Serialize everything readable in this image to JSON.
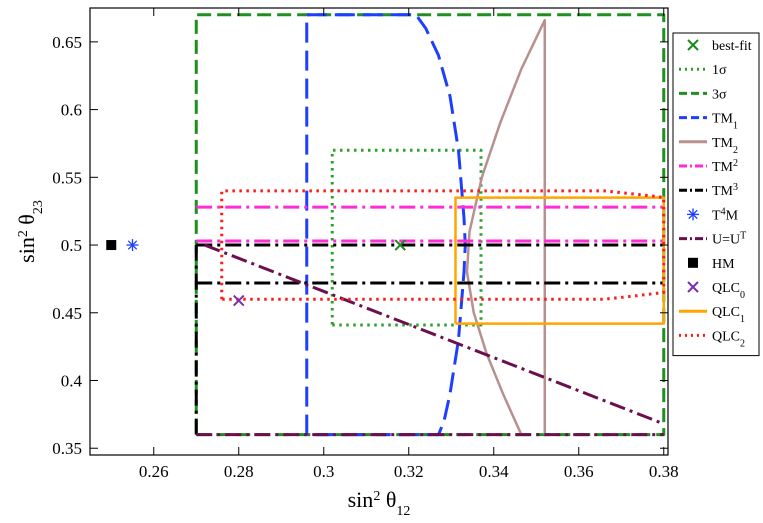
{
  "chart_data": {
    "type": "line",
    "xlabel": "sin² θ₁₂",
    "ylabel": "sin² θ₂₃",
    "xlabel_parts": {
      "base": "sin",
      "sup": "2",
      "theta": " θ",
      "sub": "12"
    },
    "ylabel_parts": {
      "base": "sin",
      "sup": "2",
      "theta": " θ",
      "sub": "23"
    },
    "xlim": [
      0.245,
      0.381
    ],
    "ylim": [
      0.345,
      0.675
    ],
    "xticks": [
      0.26,
      0.28,
      0.3,
      0.32,
      0.34,
      0.36,
      0.38
    ],
    "xtick_labels": [
      "0.26",
      "0.28",
      "0.3",
      "0.32",
      "0.34",
      "0.36",
      "0.38"
    ],
    "yticks": [
      0.35,
      0.4,
      0.45,
      0.5,
      0.55,
      0.6,
      0.65
    ],
    "ytick_labels": [
      "0.35",
      "0.4",
      "0.45",
      "0.5",
      "0.55",
      "0.6",
      "0.65"
    ],
    "grid": false,
    "legend_position": "right",
    "series": [
      {
        "name": "best-fit",
        "key": "bestfit",
        "kind": "marker",
        "marker": "x",
        "color": "#1a8a1a",
        "points": [
          [
            0.318,
            0.5
          ]
        ]
      },
      {
        "name": "1σ",
        "key": "sigma1",
        "kind": "line",
        "dash": "dot",
        "color": "#2ca02c",
        "lines": [
          [
            [
              0.302,
              0.441
            ],
            [
              0.337,
              0.441
            ],
            [
              0.337,
              0.57
            ],
            [
              0.302,
              0.57
            ],
            [
              0.302,
              0.441
            ]
          ]
        ]
      },
      {
        "name": "3σ",
        "key": "sigma3",
        "kind": "line",
        "dash": "dash",
        "color": "#1f8f1f",
        "lines": [
          [
            [
              0.27,
              0.36
            ],
            [
              0.38,
              0.36
            ],
            [
              0.38,
              0.67
            ],
            [
              0.27,
              0.67
            ],
            [
              0.27,
              0.36
            ]
          ]
        ]
      },
      {
        "name": "TM",
        "sub": "1",
        "key": "tm1",
        "kind": "line",
        "dash": "longdash",
        "color": "#1f3fff",
        "lines": [
          [
            [
              0.296,
              0.36
            ],
            [
              0.296,
              0.67
            ],
            [
              0.3217,
              0.67
            ],
            [
              0.324,
              0.66
            ],
            [
              0.327,
              0.64
            ],
            [
              0.3297,
              0.61
            ],
            [
              0.3317,
              0.57
            ],
            [
              0.333,
              0.52
            ],
            [
              0.3333,
              0.5
            ],
            [
              0.333,
              0.48
            ],
            [
              0.3317,
              0.43
            ],
            [
              0.3297,
              0.39
            ],
            [
              0.3283,
              0.37
            ],
            [
              0.327,
              0.36
            ],
            [
              0.296,
              0.36
            ]
          ]
        ]
      },
      {
        "name": "TM",
        "sub": "2",
        "key": "tm2",
        "kind": "line",
        "dash": "solid",
        "color": "#b89090",
        "lines": [
          [
            [
              0.352,
              0.36
            ],
            [
              0.352,
              0.666
            ],
            [
              0.3465,
              0.63
            ],
            [
              0.3415,
              0.59
            ],
            [
              0.3372,
              0.55
            ],
            [
              0.3343,
              0.51
            ],
            [
              0.3337,
              0.48
            ],
            [
              0.3353,
              0.45
            ],
            [
              0.3383,
              0.42
            ],
            [
              0.3422,
              0.39
            ],
            [
              0.3465,
              0.36
            ]
          ]
        ]
      },
      {
        "name": "TM",
        "sup": "2",
        "key": "tm2b",
        "kind": "line",
        "dash": "dashdot",
        "color": "#ff2bd6",
        "lines": [
          [
            [
              0.27,
              0.528
            ],
            [
              0.38,
              0.528
            ]
          ],
          [
            [
              0.27,
              0.503
            ],
            [
              0.38,
              0.503
            ]
          ]
        ]
      },
      {
        "name": "TM",
        "sup": "3",
        "key": "tm3",
        "kind": "line",
        "dash": "dashdot",
        "color": "#000000",
        "lines": [
          [
            [
              0.27,
              0.5
            ],
            [
              0.38,
              0.5
            ]
          ],
          [
            [
              0.27,
              0.472
            ],
            [
              0.38,
              0.472
            ]
          ],
          [
            [
              0.27,
              0.36
            ],
            [
              0.27,
              0.5
            ]
          ]
        ]
      },
      {
        "name": "T",
        "sup": "4",
        "after": "M",
        "key": "t4m",
        "kind": "marker",
        "marker": "asterisk",
        "color": "#1f3fff",
        "points": [
          [
            0.255,
            0.5
          ]
        ]
      },
      {
        "name": "U=U",
        "sup": "T",
        "key": "uut",
        "kind": "line",
        "dash": "dashdot",
        "color": "#6b0f4f",
        "lines": [
          [
            [
              0.272,
              0.5
            ],
            [
              0.38,
              0.368
            ]
          ],
          [
            [
              0.27,
              0.36
            ],
            [
              0.38,
              0.36
            ]
          ]
        ]
      },
      {
        "name": "HM",
        "key": "hm",
        "kind": "marker",
        "marker": "square",
        "color": "#000000",
        "points": [
          [
            0.25,
            0.5
          ]
        ]
      },
      {
        "name": "QLC",
        "sub": "0",
        "key": "qlc0",
        "kind": "marker",
        "marker": "x",
        "color": "#7a2fb0",
        "points": [
          [
            0.28,
            0.459
          ]
        ]
      },
      {
        "name": "QLC",
        "sub": "1",
        "key": "qlc1",
        "kind": "line",
        "dash": "solid",
        "color": "#ffa500",
        "lines": [
          [
            [
              0.331,
              0.442
            ],
            [
              0.38,
              0.442
            ],
            [
              0.38,
              0.535
            ],
            [
              0.331,
              0.535
            ],
            [
              0.331,
              0.442
            ]
          ]
        ]
      },
      {
        "name": "QLC",
        "sub": "2",
        "key": "qlc2",
        "kind": "line",
        "dash": "dot",
        "color": "#ff1a1a",
        "lines": [
          [
            [
              0.276,
              0.46
            ],
            [
              0.276,
              0.54
            ],
            [
              0.366,
              0.54
            ],
            [
              0.372,
              0.538
            ],
            [
              0.378,
              0.536
            ],
            [
              0.38,
              0.535
            ],
            [
              0.38,
              0.465
            ],
            [
              0.372,
              0.462
            ],
            [
              0.366,
              0.46
            ],
            [
              0.276,
              0.46
            ]
          ]
        ]
      }
    ]
  }
}
